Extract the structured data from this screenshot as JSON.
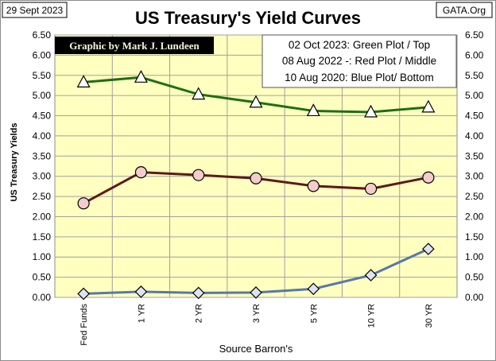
{
  "date_box": "29 Sept 2023",
  "source_box": "GATA.Org",
  "credit": "Graphic by Mark J. Lundeen",
  "legend_lines": [
    "02 Oct 2023: Green Plot / Top",
    "08 Aug 2022 -: Red Plot / Middle",
    "10 Aug 2020: Blue Plot/ Bottom"
  ],
  "colors": {
    "plot_bg": "#ffffc0",
    "green": "#1f6e12",
    "red": "#5c1a1a",
    "blue": "#5878a8",
    "marker_green": "#ffffff",
    "marker_red": "#f4cccc",
    "marker_blue": "#dde3f3",
    "credit_bg": "#000000"
  },
  "chart_data": {
    "type": "line",
    "title": "US Treasury's Yield Curves",
    "xlabel": "Source Barron's",
    "ylabel": "US Treasury Yields",
    "categories": [
      "Fed Funds",
      "1 YR",
      "2 YR",
      "3 YR",
      "5 YR",
      "10 YR",
      "30 YR"
    ],
    "ylim": [
      0,
      6.5
    ],
    "yticks": [
      "0.00",
      "0.50",
      "1.00",
      "1.50",
      "2.00",
      "2.50",
      "3.00",
      "3.50",
      "4.00",
      "4.50",
      "5.00",
      "5.50",
      "6.00",
      "6.50"
    ],
    "grid": true,
    "legend_position": "top-right",
    "series": [
      {
        "name": "02 Oct 2023",
        "color": "#1f6e12",
        "marker": "triangle",
        "values": [
          5.33,
          5.45,
          5.03,
          4.83,
          4.62,
          4.59,
          4.71
        ]
      },
      {
        "name": "08 Aug 2022",
        "color": "#5c1a1a",
        "marker": "circle",
        "values": [
          2.33,
          3.1,
          3.03,
          2.95,
          2.76,
          2.69,
          2.97
        ]
      },
      {
        "name": "10 Aug 2020",
        "color": "#5878a8",
        "marker": "diamond",
        "values": [
          0.09,
          0.14,
          0.11,
          0.12,
          0.21,
          0.55,
          1.2
        ]
      }
    ]
  }
}
